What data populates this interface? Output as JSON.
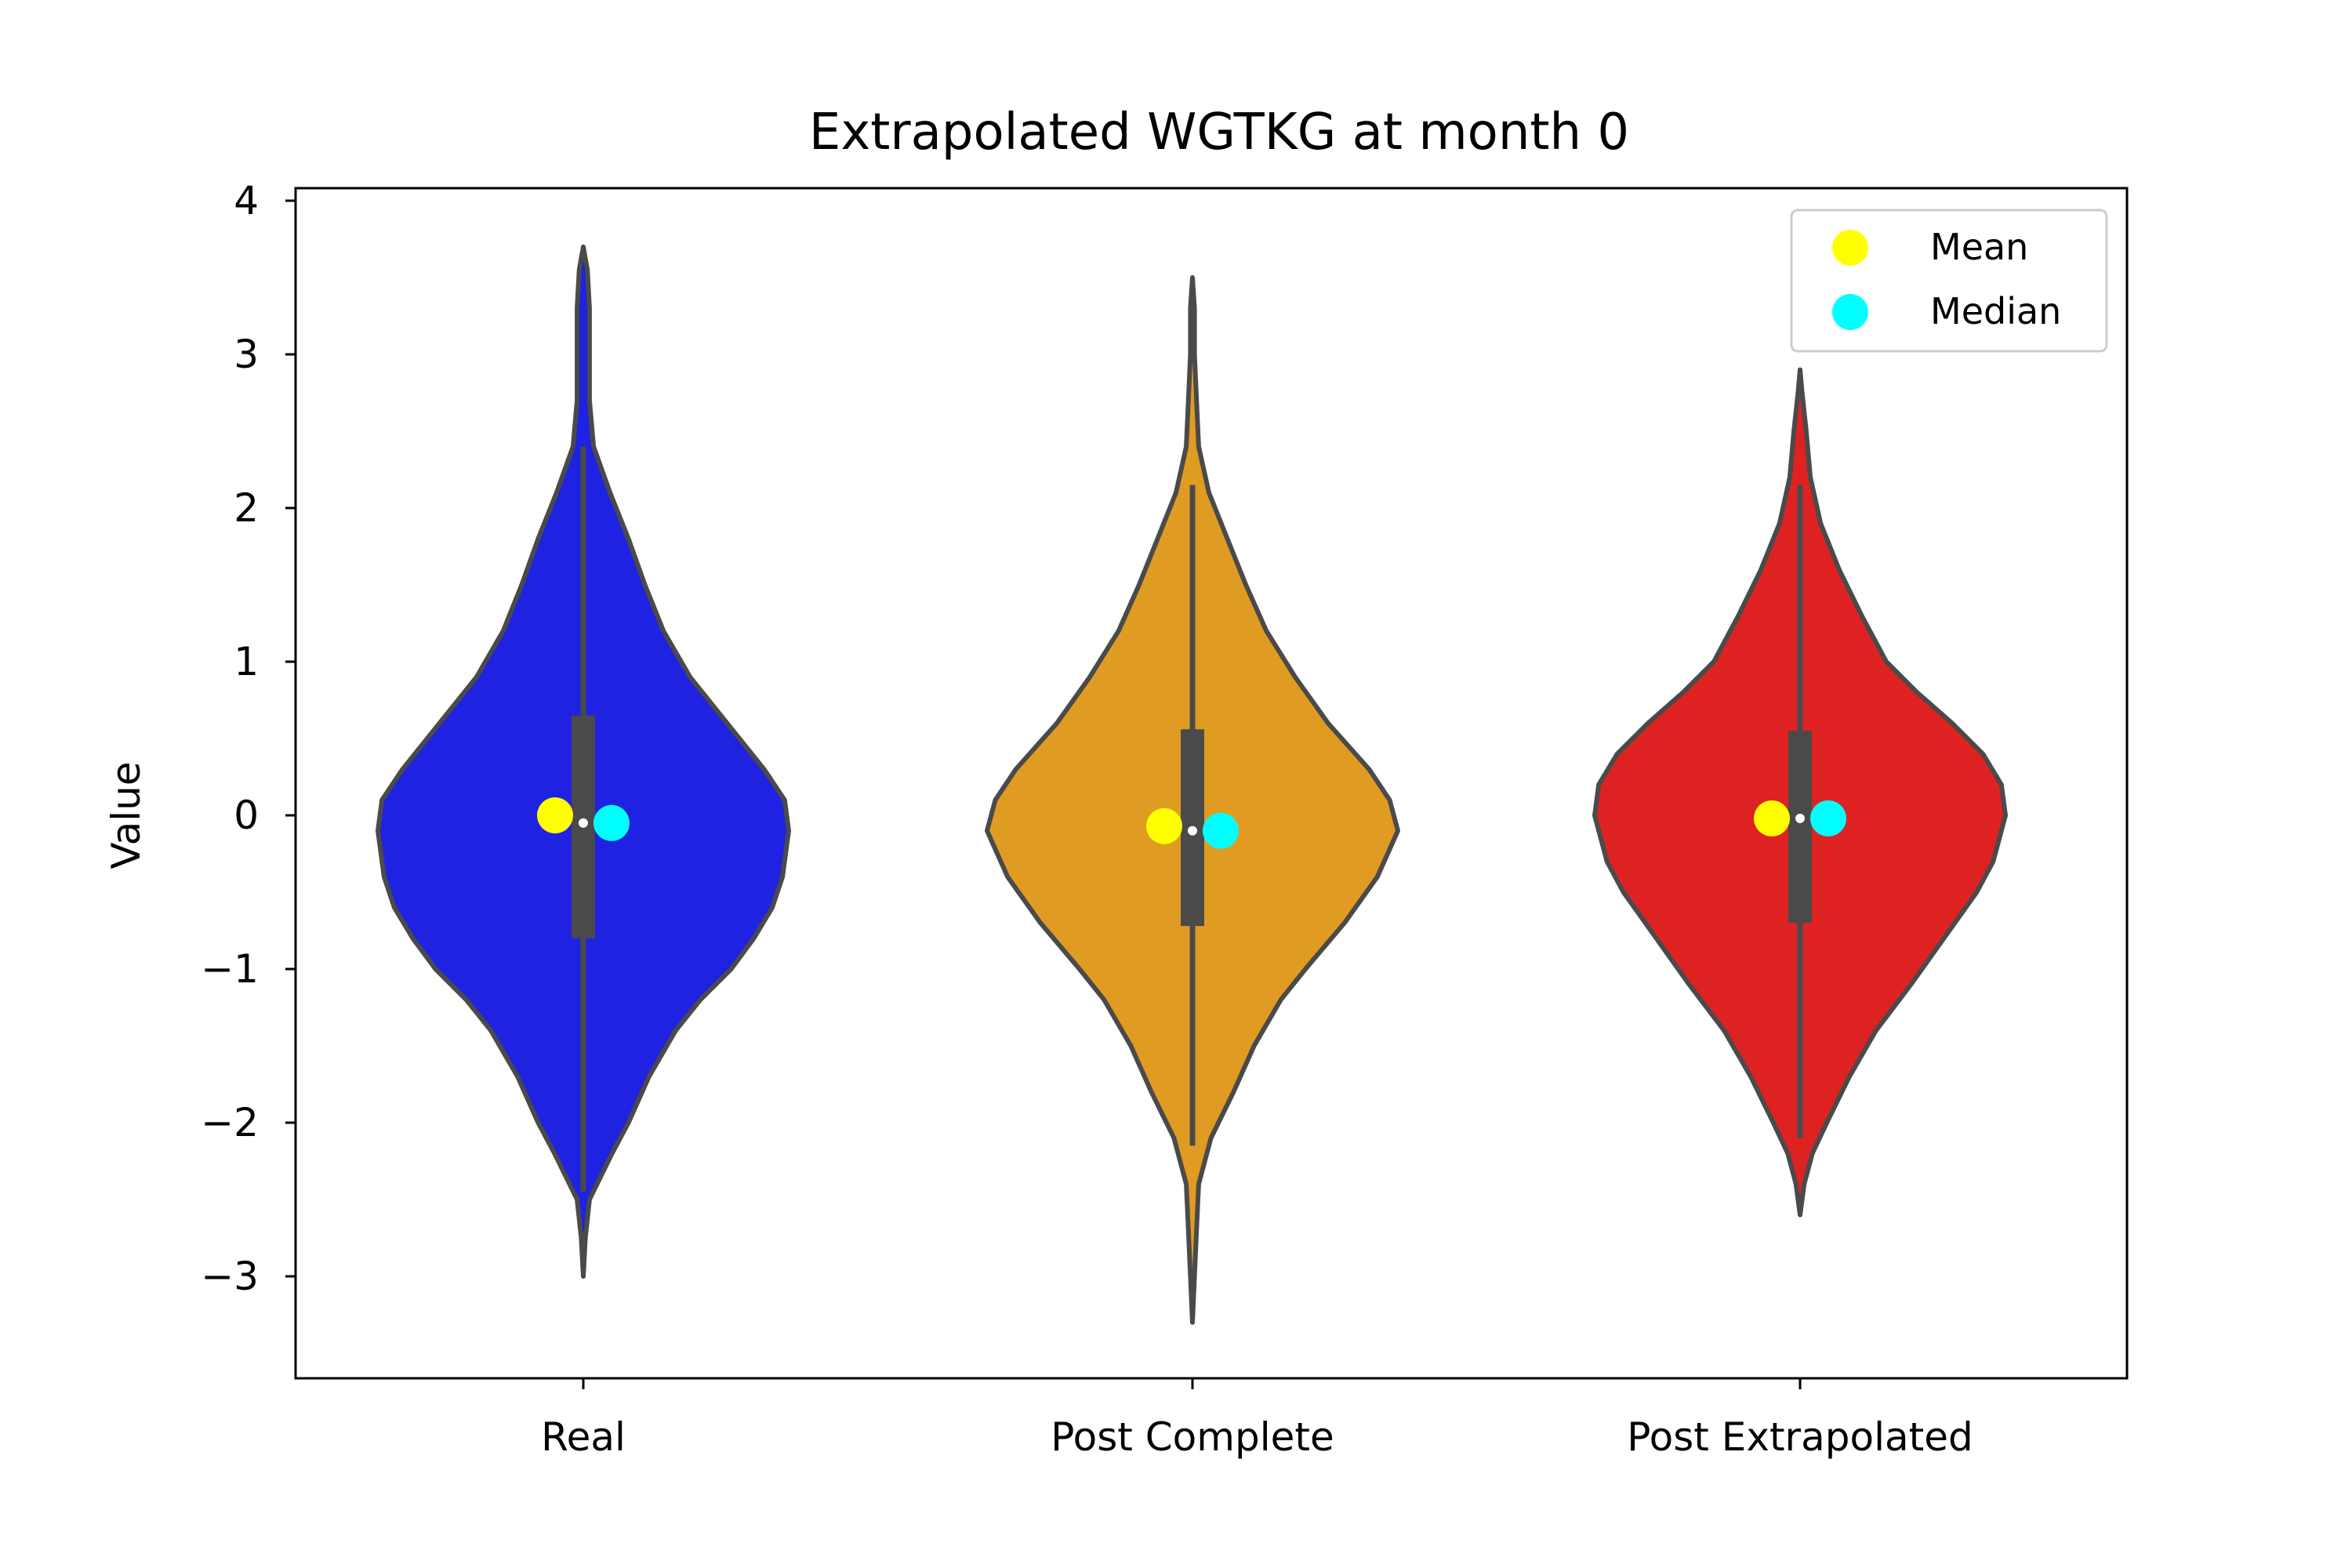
{
  "chart_data": {
    "type": "violin",
    "title": "Extrapolated WGTKG at month 0",
    "xlabel": "",
    "ylabel": "Value",
    "ylim": [
      -3.7,
      4.1
    ],
    "yticks": [
      4,
      3,
      2,
      1,
      0,
      -1,
      -2,
      -3
    ],
    "ytick_labels": [
      "4",
      "3",
      "2",
      "1",
      "0",
      "−1",
      "−2",
      "−3"
    ],
    "grid": false,
    "legend": {
      "placement": "top-right",
      "entries": [
        {
          "label": "Mean",
          "color": "#ffff00"
        },
        {
          "label": "Median",
          "color": "#00ffff"
        }
      ]
    },
    "categories": [
      "Real",
      "Post Complete",
      "Post Extrapolated"
    ],
    "series": [
      {
        "category": "Real",
        "color": "#1f22e0",
        "min": -3.0,
        "max": 3.7,
        "q1": -0.8,
        "median": -0.05,
        "q3": 0.65,
        "whisker_low": -2.45,
        "whisker_high": 2.4,
        "mean_marker": 0.0,
        "median_marker": -0.05,
        "density": [
          [
            -3.0,
            0.0
          ],
          [
            -2.75,
            0.01
          ],
          [
            -2.5,
            0.03
          ],
          [
            -2.2,
            0.14
          ],
          [
            -2.0,
            0.22
          ],
          [
            -1.7,
            0.32
          ],
          [
            -1.4,
            0.45
          ],
          [
            -1.2,
            0.57
          ],
          [
            -1.0,
            0.72
          ],
          [
            -0.8,
            0.83
          ],
          [
            -0.6,
            0.92
          ],
          [
            -0.4,
            0.97
          ],
          [
            -0.1,
            1.0
          ],
          [
            0.1,
            0.98
          ],
          [
            0.3,
            0.88
          ],
          [
            0.6,
            0.7
          ],
          [
            0.9,
            0.52
          ],
          [
            1.2,
            0.39
          ],
          [
            1.5,
            0.3
          ],
          [
            1.8,
            0.22
          ],
          [
            2.1,
            0.13
          ],
          [
            2.4,
            0.05
          ],
          [
            2.7,
            0.03
          ],
          [
            3.0,
            0.03
          ],
          [
            3.3,
            0.03
          ],
          [
            3.55,
            0.02
          ],
          [
            3.7,
            0.0
          ]
        ]
      },
      {
        "category": "Post Complete",
        "color": "#e09c22",
        "min": -3.3,
        "max": 3.5,
        "q1": -0.72,
        "median": -0.1,
        "q3": 0.56,
        "whisker_low": -2.15,
        "whisker_high": 2.15,
        "mean_marker": -0.07,
        "median_marker": -0.1,
        "density": [
          [
            -3.3,
            0.0
          ],
          [
            -3.0,
            0.01
          ],
          [
            -2.7,
            0.02
          ],
          [
            -2.4,
            0.03
          ],
          [
            -2.1,
            0.09
          ],
          [
            -1.8,
            0.2
          ],
          [
            -1.5,
            0.3
          ],
          [
            -1.2,
            0.43
          ],
          [
            -1.0,
            0.55
          ],
          [
            -0.7,
            0.74
          ],
          [
            -0.4,
            0.9
          ],
          [
            -0.1,
            1.0
          ],
          [
            0.1,
            0.96
          ],
          [
            0.3,
            0.86
          ],
          [
            0.6,
            0.66
          ],
          [
            0.9,
            0.5
          ],
          [
            1.2,
            0.36
          ],
          [
            1.5,
            0.26
          ],
          [
            1.8,
            0.17
          ],
          [
            2.1,
            0.08
          ],
          [
            2.4,
            0.03
          ],
          [
            2.7,
            0.02
          ],
          [
            3.0,
            0.01
          ],
          [
            3.3,
            0.01
          ],
          [
            3.5,
            0.0
          ]
        ]
      },
      {
        "category": "Post Extrapolated",
        "color": "#de2222",
        "min": -2.6,
        "max": 2.9,
        "q1": -0.7,
        "median": -0.02,
        "q3": 0.55,
        "whisker_low": -2.1,
        "whisker_high": 2.15,
        "mean_marker": -0.02,
        "median_marker": -0.02,
        "density": [
          [
            -2.6,
            0.0
          ],
          [
            -2.4,
            0.02
          ],
          [
            -2.2,
            0.06
          ],
          [
            -2.0,
            0.13
          ],
          [
            -1.7,
            0.24
          ],
          [
            -1.4,
            0.37
          ],
          [
            -1.1,
            0.54
          ],
          [
            -0.8,
            0.7
          ],
          [
            -0.5,
            0.86
          ],
          [
            -0.3,
            0.94
          ],
          [
            0.0,
            1.0
          ],
          [
            0.2,
            0.98
          ],
          [
            0.4,
            0.89
          ],
          [
            0.6,
            0.74
          ],
          [
            0.8,
            0.57
          ],
          [
            1.0,
            0.42
          ],
          [
            1.3,
            0.3
          ],
          [
            1.6,
            0.19
          ],
          [
            1.9,
            0.1
          ],
          [
            2.2,
            0.05
          ],
          [
            2.5,
            0.03
          ],
          [
            2.75,
            0.01
          ],
          [
            2.9,
            0.0
          ]
        ]
      }
    ]
  }
}
